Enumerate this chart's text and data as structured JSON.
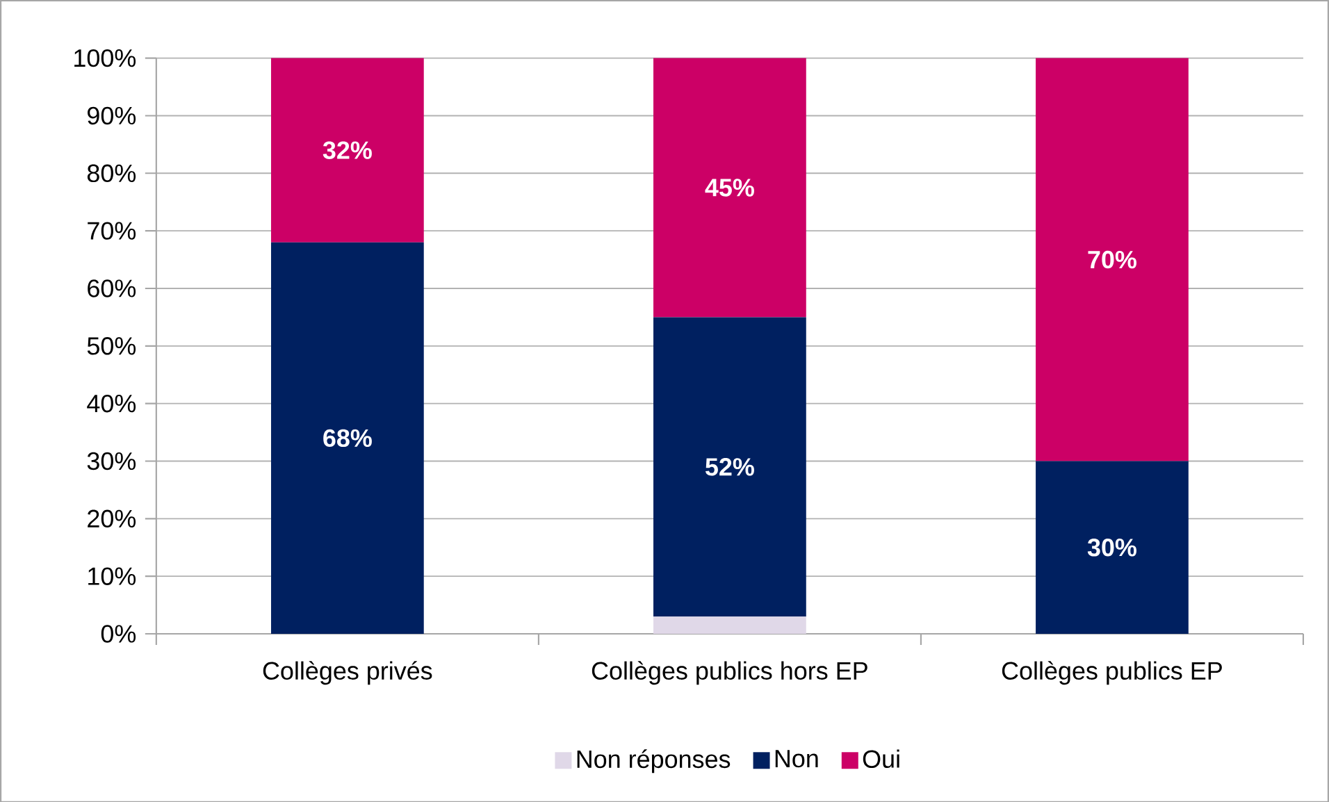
{
  "chart_data": {
    "type": "bar",
    "stacked": true,
    "categories": [
      "Collèges privés",
      "Collèges publics hors EP",
      "Collèges publics EP"
    ],
    "series": [
      {
        "name": "Non réponses",
        "color": "#e0d8e8",
        "values": [
          0,
          3,
          0
        ]
      },
      {
        "name": "Non",
        "color": "#002060",
        "values": [
          68,
          52,
          30
        ],
        "value_labels": [
          "68%",
          "52%",
          "30%"
        ]
      },
      {
        "name": "Oui",
        "color": "#cc0066",
        "values": [
          32,
          45,
          70
        ],
        "value_labels": [
          "32%",
          "45%",
          "70%"
        ]
      }
    ],
    "ylim": [
      0,
      100
    ],
    "yticks": [
      {
        "value": 0,
        "label": "0%"
      },
      {
        "value": 10,
        "label": "10%"
      },
      {
        "value": 20,
        "label": "20%"
      },
      {
        "value": 30,
        "label": "30%"
      },
      {
        "value": 40,
        "label": "40%"
      },
      {
        "value": 50,
        "label": "50%"
      },
      {
        "value": 60,
        "label": "60%"
      },
      {
        "value": 70,
        "label": "70%"
      },
      {
        "value": 80,
        "label": "80%"
      },
      {
        "value": 90,
        "label": "90%"
      },
      {
        "value": 100,
        "label": "100%"
      }
    ],
    "grid": "y",
    "legend": "bottom"
  }
}
